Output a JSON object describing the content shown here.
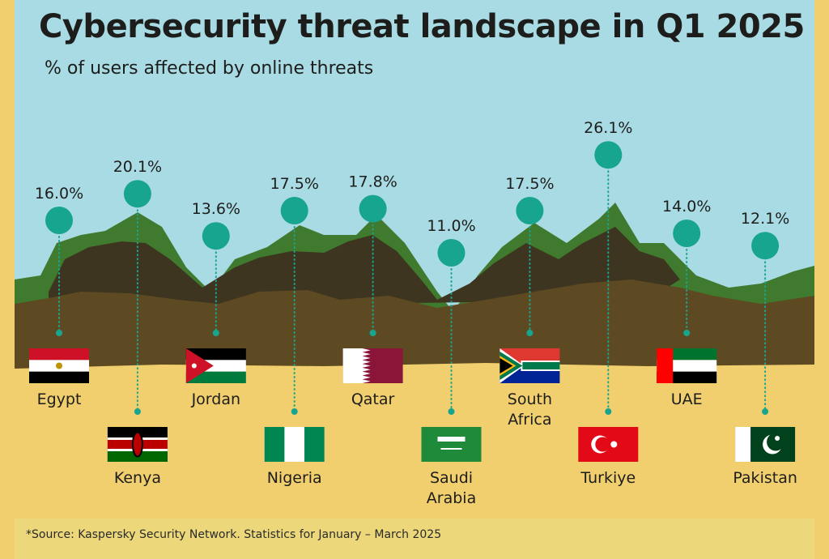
{
  "header": {
    "title": "Cybersecurity threat landscape in Q1 2025",
    "subtitle": "% of users affected by online threats"
  },
  "footer": {
    "source": "*Source: Kaspersky Security Network. Statistics for January – March 2025"
  },
  "colors": {
    "sky": "#a9dbe4",
    "sand": "#f1cf6e",
    "dot": "#18a58f",
    "mountain_green": "#3f7a2e",
    "mountain_dark": "#3d3520",
    "mountain_brown": "#5e4a22"
  },
  "chart_data": {
    "type": "scatter",
    "title": "Cybersecurity threat landscape in Q1 2025",
    "subtitle": "% of users affected by online threats",
    "unit": "%",
    "categories": [
      "Egypt",
      "Kenya",
      "Jordan",
      "Nigeria",
      "Qatar",
      "Saudi Arabia",
      "South Africa",
      "Turkiye",
      "UAE",
      "Pakistan"
    ],
    "category_lines": [
      [
        "Egypt"
      ],
      [
        "Kenya"
      ],
      [
        "Jordan"
      ],
      [
        "Nigeria"
      ],
      [
        "Qatar"
      ],
      [
        "Saudi",
        "Arabia"
      ],
      [
        "South",
        "Africa"
      ],
      [
        "Turkiye"
      ],
      [
        "UAE"
      ],
      [
        "Pakistan"
      ]
    ],
    "values": [
      16.0,
      20.1,
      13.6,
      17.5,
      17.8,
      11.0,
      17.5,
      26.1,
      14.0,
      12.1
    ],
    "labels": [
      "16.0%",
      "20.1%",
      "13.6%",
      "17.5%",
      "17.8%",
      "11.0%",
      "17.5%",
      "26.1%",
      "14.0%",
      "12.1%"
    ],
    "flags": [
      "egypt-flag",
      "kenya-flag",
      "jordan-flag",
      "nigeria-flag",
      "qatar-flag",
      "saudi-arabia-flag",
      "south-africa-flag",
      "turkiye-flag",
      "uae-flag",
      "pakistan-flag"
    ],
    "grid": false,
    "legend": "none"
  }
}
